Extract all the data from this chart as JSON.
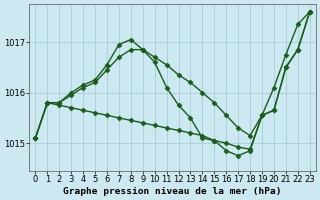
{
  "title": "Graphe pression niveau de la mer (hPa)",
  "bg_color": "#cce8f0",
  "line_color": "#1a5c1a",
  "grid_color": "#aaccd8",
  "yticks": [
    1015,
    1016,
    1017
  ],
  "ylim": [
    1014.45,
    1017.75
  ],
  "xlim": [
    -0.5,
    23.5
  ],
  "xticks": [
    0,
    1,
    2,
    3,
    4,
    5,
    6,
    7,
    8,
    9,
    10,
    11,
    12,
    13,
    14,
    15,
    16,
    17,
    18,
    19,
    20,
    21,
    22,
    23
  ],
  "series": [
    [
      1015.1,
      1015.8,
      1015.8,
      1016.0,
      1016.15,
      1016.25,
      1016.55,
      1016.95,
      1017.05,
      1016.85,
      1016.6,
      1016.1,
      1015.75,
      1015.5,
      1015.1,
      1015.05,
      1014.85,
      1014.75,
      1014.85,
      1015.55,
      1016.1,
      1016.75,
      1017.35,
      1017.6
    ],
    [
      1015.1,
      1015.8,
      1015.8,
      1015.95,
      1016.1,
      1016.2,
      1016.45,
      1016.7,
      1016.85,
      1016.85,
      1016.7,
      1016.55,
      1016.35,
      1016.2,
      1016.0,
      1015.8,
      1015.55,
      1015.3,
      1015.15,
      1015.55,
      1015.65,
      1016.5,
      1016.85,
      1017.6
    ],
    [
      1015.1,
      1015.8,
      1015.75,
      1015.7,
      1015.65,
      1015.6,
      1015.55,
      1015.5,
      1015.45,
      1015.4,
      1015.35,
      1015.3,
      1015.25,
      1015.2,
      1015.15,
      1015.05,
      1015.0,
      1014.92,
      1014.88,
      1015.55,
      1015.65,
      1016.5,
      1016.85,
      1017.6
    ]
  ],
  "marker": "D",
  "marker_size": 2.5,
  "line_width": 1.0,
  "title_fontsize": 6.8,
  "tick_fontsize": 6.0
}
